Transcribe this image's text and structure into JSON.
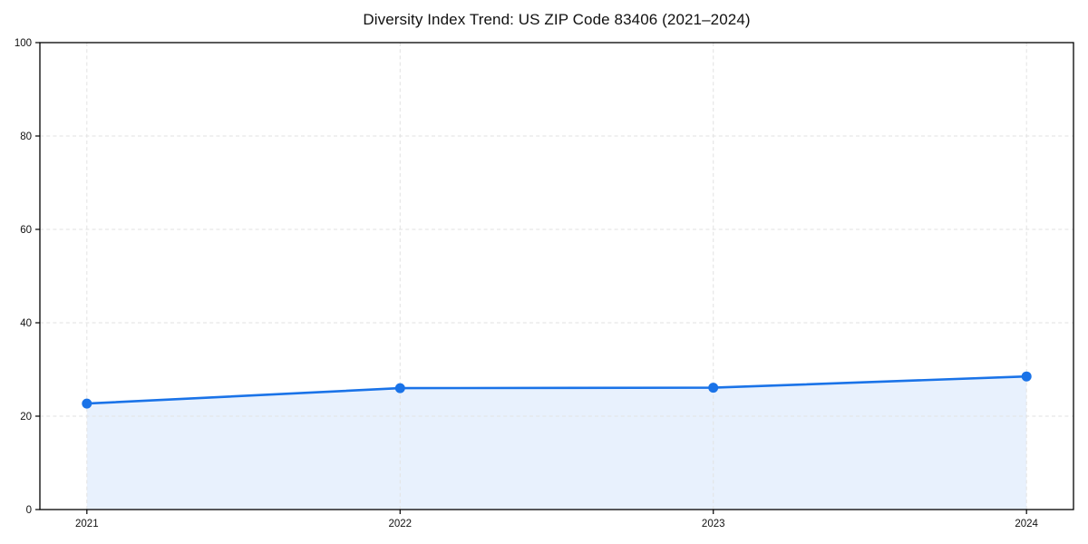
{
  "chart_data": {
    "type": "area",
    "title": "Diversity Index Trend: US ZIP Code 83406 (2021–2024)",
    "x": [
      2021,
      2022,
      2023,
      2024
    ],
    "x_tick_labels": [
      "2021",
      "2022",
      "2023",
      "2024"
    ],
    "values": [
      22.7,
      26.0,
      26.1,
      28.5
    ],
    "series_name": "Diversity Index",
    "y_ticks": [
      0,
      20,
      40,
      60,
      80,
      100
    ],
    "ylim": [
      0,
      100
    ],
    "xlim": [
      2020.85,
      2024.15
    ],
    "xlabel": "",
    "ylabel": "",
    "grid": {
      "show": true,
      "style": "dashed",
      "axes": "both"
    },
    "legend": {
      "show": false
    },
    "marker": "circle",
    "colors": {
      "line": "#1a73e8",
      "marker": "#1a73e8",
      "area_fill": "#e8f1fd",
      "grid": "#e2e2e2",
      "spine": "#000000",
      "tick_label": "#111111",
      "title": "#111111",
      "background": "#ffffff"
    }
  }
}
